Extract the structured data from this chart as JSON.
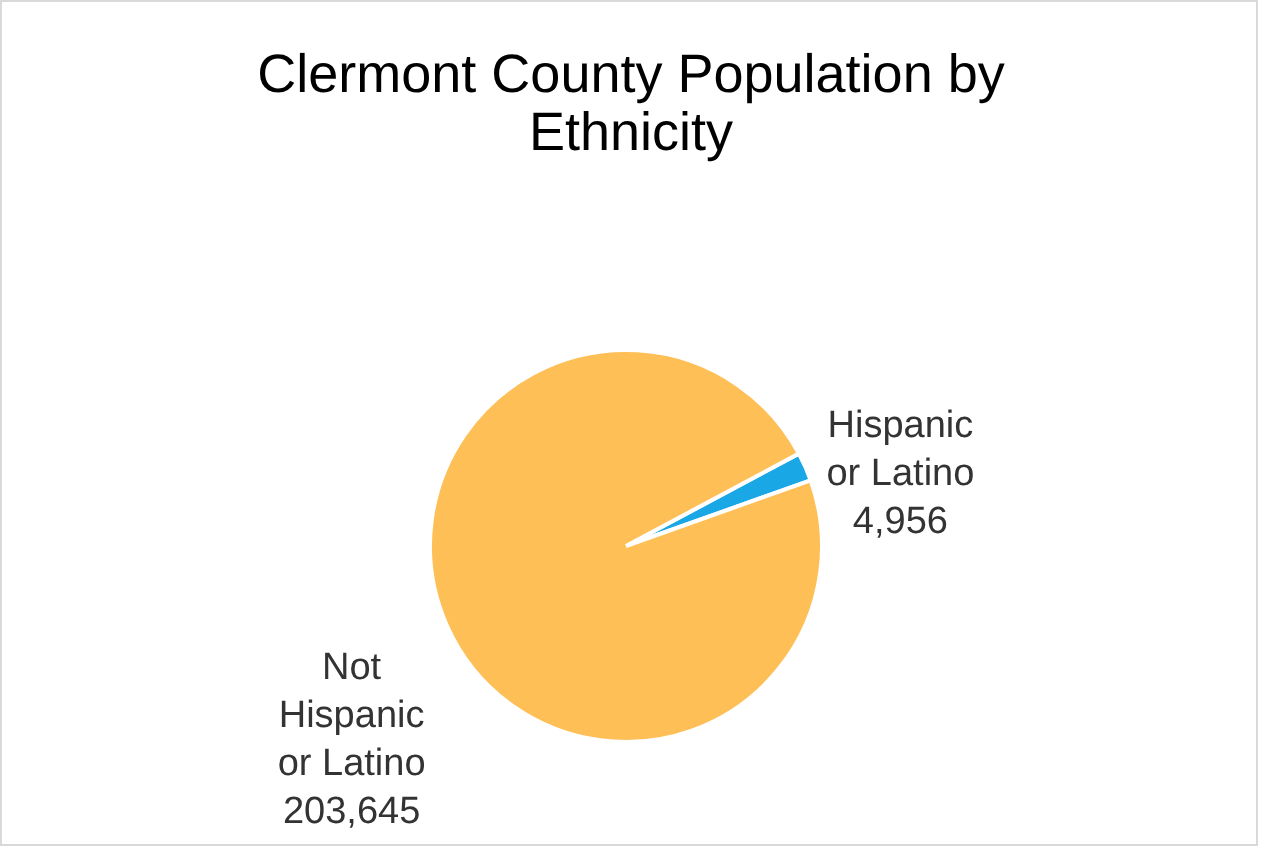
{
  "chart_data": {
    "type": "pie",
    "title": "Clermont County Population by Ethnicity",
    "categories": [
      "Hispanic or Latino",
      "Not Hispanic or Latino"
    ],
    "values": [
      4956,
      203645
    ],
    "colors": [
      "#1aa7e6",
      "#ffbf57"
    ],
    "value_labels": [
      "4,956",
      "203,645"
    ],
    "legend": false
  }
}
